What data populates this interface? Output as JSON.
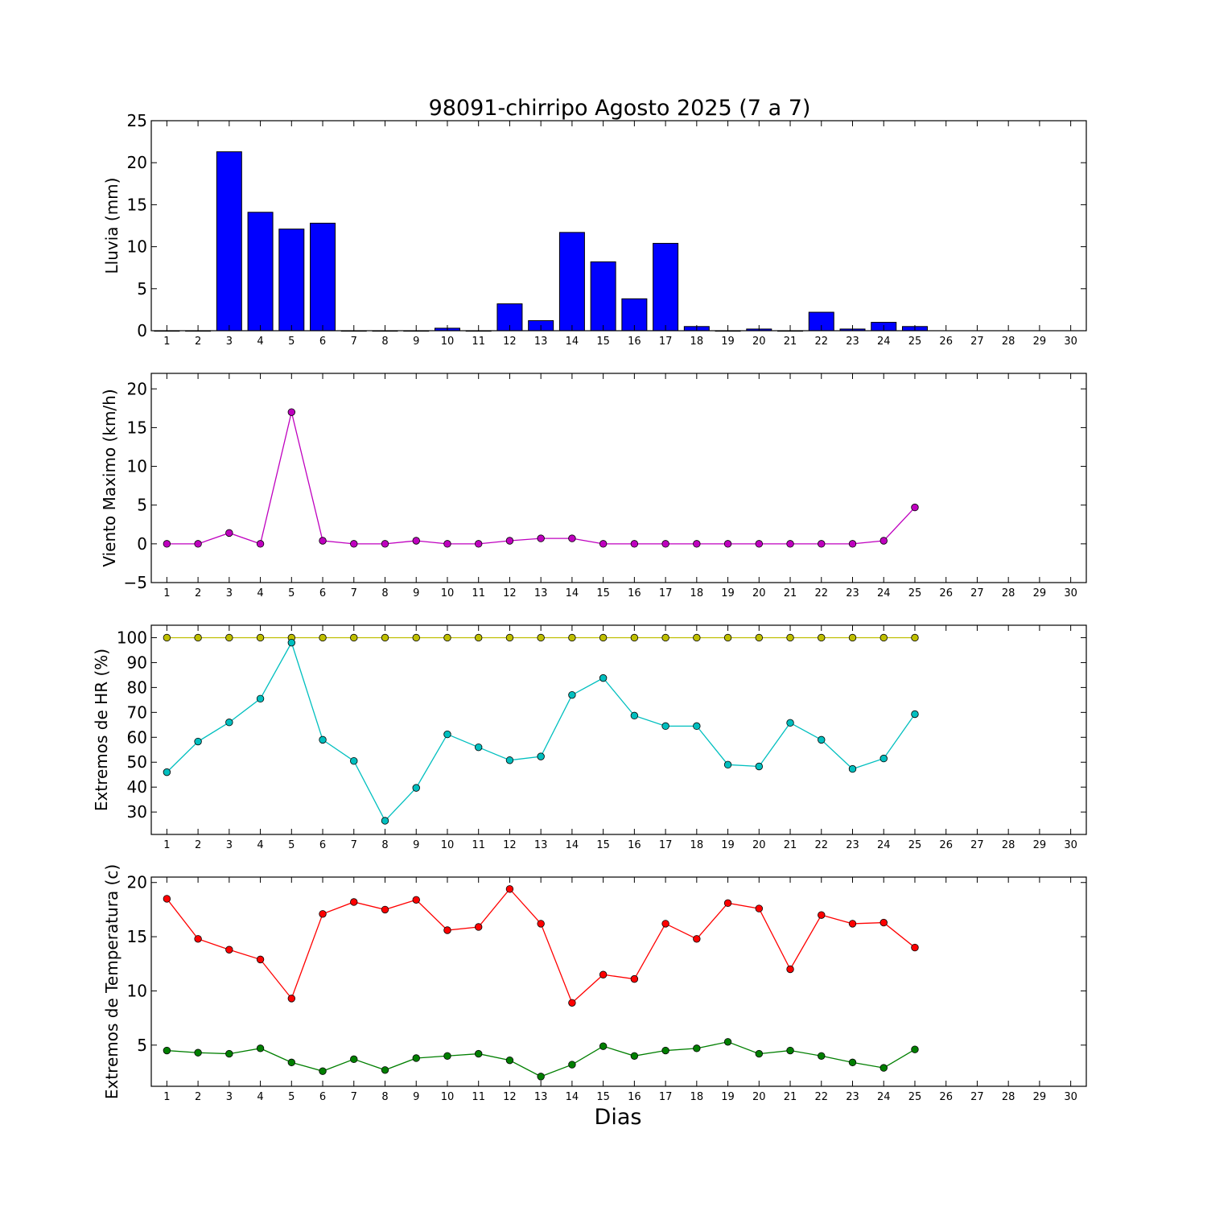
{
  "figure": {
    "title": "98091-chirripo Agosto 2025  (7 a 7)",
    "xlabel": "Dias"
  },
  "chart_data": [
    {
      "type": "bar",
      "ylabel": "Lluvia (mm)",
      "ylim": [
        0,
        25
      ],
      "yticks": [
        0,
        5,
        10,
        15,
        20,
        25
      ],
      "xlim": [
        0.5,
        30.5
      ],
      "xticks": [
        1,
        2,
        3,
        4,
        5,
        6,
        7,
        8,
        9,
        10,
        11,
        12,
        13,
        14,
        15,
        16,
        17,
        18,
        19,
        20,
        21,
        22,
        23,
        24,
        25,
        26,
        27,
        28,
        29,
        30
      ],
      "grid": false,
      "color": "#0000ff",
      "series": [
        {
          "x": [
            1,
            2,
            3,
            4,
            5,
            6,
            7,
            8,
            9,
            10,
            11,
            12,
            13,
            14,
            15,
            16,
            17,
            18,
            19,
            20,
            21,
            22,
            23,
            24,
            25
          ],
          "values": [
            0,
            0,
            21.3,
            14.1,
            12.1,
            12.8,
            0,
            0,
            0,
            0.3,
            0,
            3.2,
            1.2,
            11.7,
            8.2,
            3.8,
            10.4,
            0.5,
            0,
            0.2,
            0,
            2.2,
            0.2,
            1.0,
            0.5
          ]
        }
      ]
    },
    {
      "type": "line",
      "ylabel": "Viento Maximo (km/h)",
      "ylim": [
        -5,
        22
      ],
      "yticks": [
        -5,
        0,
        5,
        10,
        15,
        20
      ],
      "xlim": [
        0.5,
        30.5
      ],
      "xticks": [
        1,
        2,
        3,
        4,
        5,
        6,
        7,
        8,
        9,
        10,
        11,
        12,
        13,
        14,
        15,
        16,
        17,
        18,
        19,
        20,
        21,
        22,
        23,
        24,
        25,
        26,
        27,
        28,
        29,
        30
      ],
      "grid": false,
      "series": [
        {
          "color": "#bf00bf",
          "x": [
            1,
            2,
            3,
            4,
            5,
            6,
            7,
            8,
            9,
            10,
            11,
            12,
            13,
            14,
            15,
            16,
            17,
            18,
            19,
            20,
            21,
            22,
            23,
            24,
            25
          ],
          "values": [
            0,
            0,
            1.4,
            0,
            17,
            0.4,
            0,
            0,
            0.4,
            0,
            0,
            0.4,
            0.7,
            0.7,
            0,
            0,
            0,
            0,
            0,
            0,
            0,
            0,
            0,
            0.4,
            4.7
          ]
        }
      ]
    },
    {
      "type": "line",
      "ylabel": "Extremos de HR (%)",
      "ylim": [
        21,
        105
      ],
      "yticks": [
        30,
        40,
        50,
        60,
        70,
        80,
        90,
        100
      ],
      "xlim": [
        0.5,
        30.5
      ],
      "xticks": [
        1,
        2,
        3,
        4,
        5,
        6,
        7,
        8,
        9,
        10,
        11,
        12,
        13,
        14,
        15,
        16,
        17,
        18,
        19,
        20,
        21,
        22,
        23,
        24,
        25,
        26,
        27,
        28,
        29,
        30
      ],
      "grid": false,
      "series": [
        {
          "color": "#bfbf00",
          "x": [
            1,
            2,
            3,
            4,
            5,
            6,
            7,
            8,
            9,
            10,
            11,
            12,
            13,
            14,
            15,
            16,
            17,
            18,
            19,
            20,
            21,
            22,
            23,
            24,
            25
          ],
          "values": [
            100,
            100,
            100,
            100,
            100,
            100,
            100,
            100,
            100,
            100,
            100,
            100,
            100,
            100,
            100,
            100,
            100,
            100,
            100,
            100,
            100,
            100,
            100,
            100,
            100
          ]
        },
        {
          "color": "#00bfbf",
          "x": [
            1,
            2,
            3,
            4,
            5,
            6,
            7,
            8,
            9,
            10,
            11,
            12,
            13,
            14,
            15,
            16,
            17,
            18,
            19,
            20,
            21,
            22,
            23,
            24,
            25
          ],
          "values": [
            46,
            58.3,
            66,
            75.5,
            98,
            59,
            50.5,
            26.5,
            39.7,
            61.2,
            56,
            50.8,
            52.3,
            77,
            83.8,
            68.7,
            64.5,
            64.5,
            49,
            48.3,
            65.8,
            59,
            47.3,
            51.5,
            69.3
          ]
        }
      ]
    },
    {
      "type": "line",
      "ylabel": "Extremos de Temperatura (c)",
      "ylim": [
        1.2,
        20.5
      ],
      "yticks": [
        5,
        10,
        15,
        20
      ],
      "xlim": [
        0.5,
        30.5
      ],
      "xticks": [
        1,
        2,
        3,
        4,
        5,
        6,
        7,
        8,
        9,
        10,
        11,
        12,
        13,
        14,
        15,
        16,
        17,
        18,
        19,
        20,
        21,
        22,
        23,
        24,
        25,
        26,
        27,
        28,
        29,
        30
      ],
      "grid": false,
      "series": [
        {
          "color": "#ff0000",
          "x": [
            1,
            2,
            3,
            4,
            5,
            6,
            7,
            8,
            9,
            10,
            11,
            12,
            13,
            14,
            15,
            16,
            17,
            18,
            19,
            20,
            21,
            22,
            23,
            24,
            25
          ],
          "values": [
            18.5,
            14.8,
            13.8,
            12.9,
            9.3,
            17.1,
            18.2,
            17.5,
            18.4,
            15.6,
            15.9,
            19.4,
            16.2,
            8.9,
            11.5,
            11.1,
            16.2,
            14.8,
            18.1,
            17.6,
            12,
            17,
            16.2,
            16.3,
            14
          ]
        },
        {
          "color": "#007f00",
          "x": [
            1,
            2,
            3,
            4,
            5,
            6,
            7,
            8,
            9,
            10,
            11,
            12,
            13,
            14,
            15,
            16,
            17,
            18,
            19,
            20,
            21,
            22,
            23,
            24,
            25
          ],
          "values": [
            4.5,
            4.3,
            4.2,
            4.7,
            3.4,
            2.6,
            3.7,
            2.7,
            3.8,
            4.0,
            4.2,
            3.6,
            2.1,
            3.2,
            4.9,
            4.0,
            4.5,
            4.7,
            5.3,
            4.2,
            4.5,
            4.0,
            3.4,
            2.9,
            4.6
          ]
        }
      ]
    }
  ]
}
